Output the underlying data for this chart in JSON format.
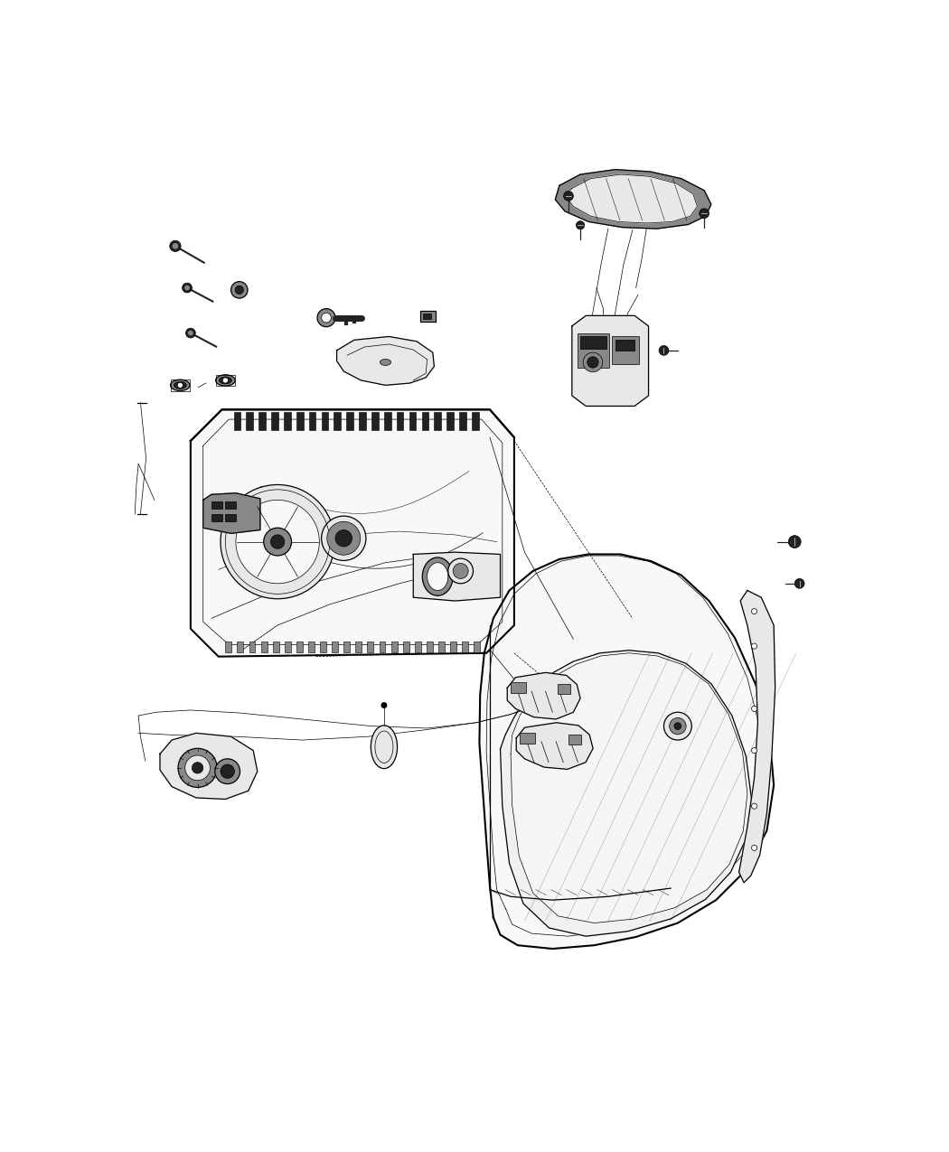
{
  "background_color": "#ffffff",
  "line_color": "#000000",
  "fig_width": 10.5,
  "fig_height": 12.75,
  "dpi": 100,
  "lw_thin": 0.5,
  "lw_med": 0.9,
  "lw_thick": 1.5,
  "lw_vthick": 2.5,
  "bolt_fill": "#1a1a1a",
  "panel_fill": "#f8f8f8",
  "dark_fill": "#222222",
  "mid_fill": "#888888",
  "light_fill": "#e8e8e8"
}
